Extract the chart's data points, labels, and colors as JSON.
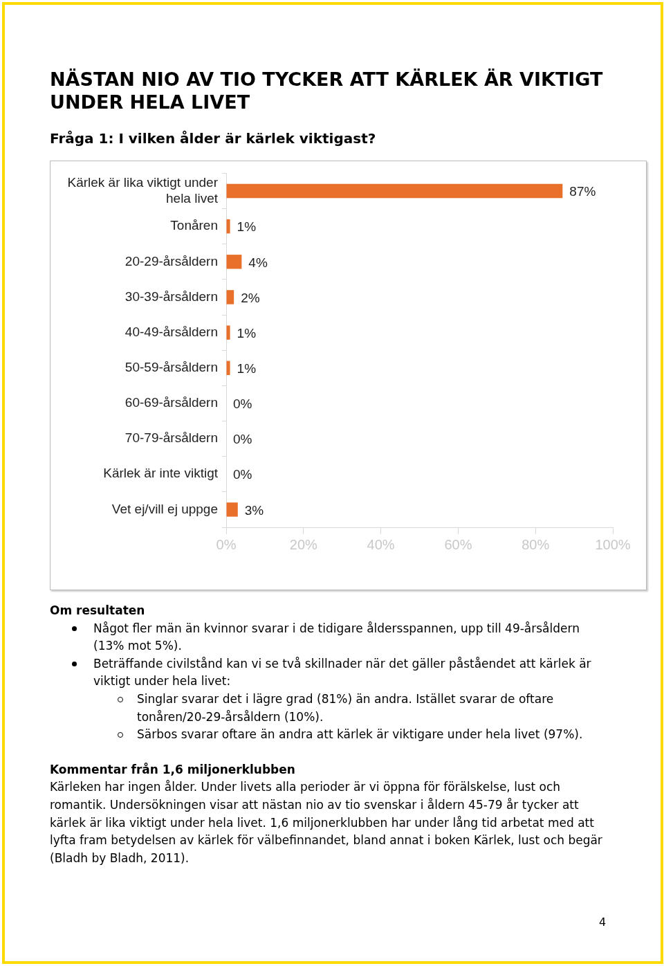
{
  "chart_data": {
    "type": "bar",
    "orientation": "horizontal",
    "title": "NÄSTAN NIO AV TIO TYCKER ATT KÄRLEK ÄR VIKTIGT UNDER HELA LIVET",
    "subtitle": "Fråga 1: I vilken ålder är kärlek viktigast?",
    "categories": [
      "Kärlek är lika viktigt under hela livet",
      "Tonåren",
      "20-29-årsåldern",
      "30-39-årsåldern",
      "40-49-årsåldern",
      "50-59-årsåldern",
      "60-69-årsåldern",
      "70-79-årsåldern",
      "Kärlek är inte viktigt",
      "Vet ej/vill ej uppge"
    ],
    "values": [
      87,
      1,
      4,
      2,
      1,
      1,
      0,
      0,
      0,
      3
    ],
    "value_labels": [
      "87%",
      "1%",
      "4%",
      "2%",
      "1%",
      "1%",
      "0%",
      "0%",
      "0%",
      "3%"
    ],
    "color": "#e8702a",
    "xlim": [
      0,
      100
    ],
    "xticks": [
      {
        "value": 0,
        "label": "0%"
      },
      {
        "value": 20,
        "label": "20%"
      },
      {
        "value": 40,
        "label": "40%"
      },
      {
        "value": 60,
        "label": "60%"
      },
      {
        "value": 80,
        "label": "80%"
      },
      {
        "value": 100,
        "label": "100%"
      }
    ],
    "grid": false,
    "legend": false,
    "annotations": [
      "Om resultaten",
      "Något fler män än kvinnor svarar i de tidigare åldersspannen, upp till 49-årsåldern (13% mot 5%).",
      "Beträffande civilstånd kan vi se två skillnader när det gäller påståendet att kärlek är viktigt under hela livet:",
      "Singlar svarar det i lägre grad (81%) än andra. Istället svarar de oftare tonåren/20-29-årsåldern (10%).",
      "Särbos svarar oftare än andra att kärlek är viktigare under hela livet (97%).",
      "Kommentar från 1,6 miljonerklubben",
      "Kärleken har ingen ålder. Under livets alla perioder är vi öppna för förälskelse, lust och romantik. Undersökningen visar att nästan nio av tio svenskar i åldern 45-79 år tycker att kärlek är lika viktigt under hela livet. 1,6 miljonerklubben har under lång tid arbetat med att lyfta fram betydelsen av kärlek för välbefinnandet, bland annat i boken Kärlek, lust och begär (Bladh by Bladh, 2011).",
      "4"
    ]
  }
}
